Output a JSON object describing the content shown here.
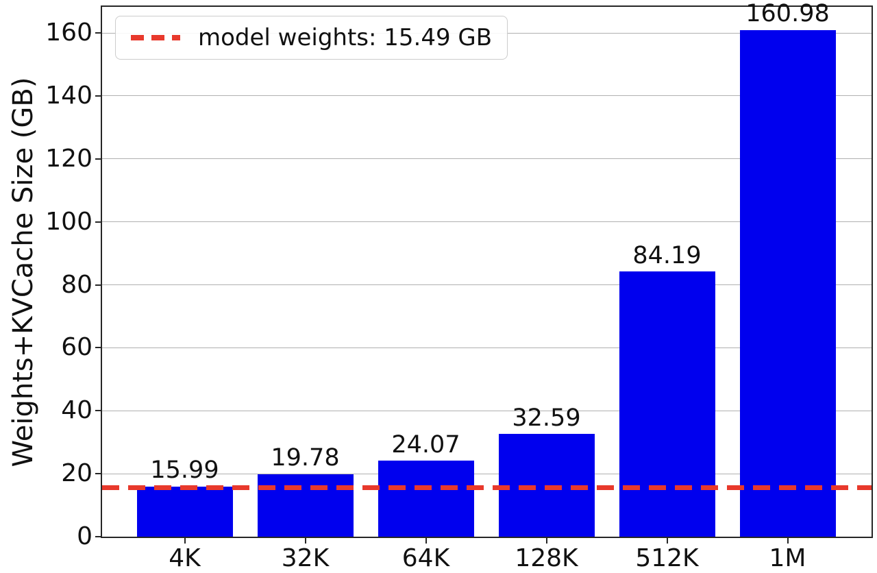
{
  "chart_data": {
    "type": "bar",
    "title": "",
    "categories": [
      "4K",
      "32K",
      "64K",
      "128K",
      "512K",
      "1M"
    ],
    "values": [
      15.99,
      19.78,
      24.07,
      32.59,
      84.19,
      160.98
    ],
    "value_labels": [
      "15.99",
      "19.78",
      "24.07",
      "32.59",
      "84.19",
      "160.98"
    ],
    "xlabel": "",
    "ylabel": "Weights+KVCache Size (GB)",
    "yticks": [
      0,
      20,
      40,
      60,
      80,
      100,
      120,
      140,
      160
    ],
    "ylim": [
      0,
      168.3
    ],
    "grid": "horizontal",
    "legend_position": "upper-left",
    "colors": {
      "bar": "#0000ee",
      "reference_line": "#e8392c",
      "gridline": "#b0b0b0",
      "axis": "#262626",
      "text": "#111111",
      "legend_border": "#cccccc"
    },
    "reference_line": {
      "value": 15.49,
      "style": "dashed",
      "label": "model weights: 15.49 GB"
    },
    "legend": {
      "entries": [
        {
          "label": "model weights: 15.49 GB",
          "marker": "red-dashed-line"
        }
      ]
    }
  }
}
